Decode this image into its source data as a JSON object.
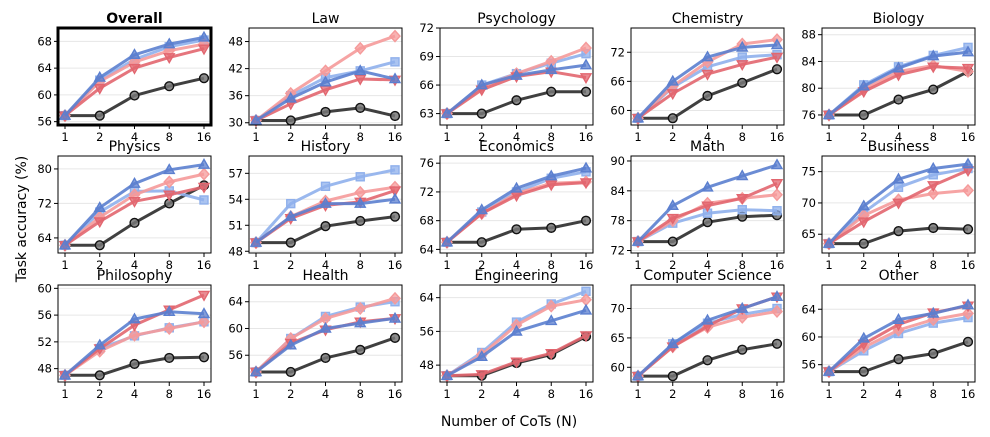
{
  "figure": {
    "ylabel": "Task accuracy (%)",
    "xlabel": "Number of CoTs (N)"
  },
  "colors": {
    "black": "#2b2b2b",
    "blue_tri": "#5b7fcf",
    "blue_sq": "#8fb0ec",
    "red_dtri": "#e2666f",
    "pink_dia": "#f59a9a",
    "grid": "#e6e6e6"
  },
  "chart_data": [
    {
      "type": "line",
      "title": "Overall",
      "bold": true,
      "highlight": true,
      "x": [
        "1",
        "2",
        "4",
        "8",
        "16"
      ],
      "ylim": [
        55.5,
        70
      ],
      "yticks": [
        56,
        60,
        64,
        68
      ],
      "series": [
        {
          "name": "black",
          "values": [
            56.9,
            56.9,
            59.9,
            61.3,
            62.5
          ]
        },
        {
          "name": "blue_tri",
          "values": [
            56.9,
            62.6,
            66.0,
            67.6,
            68.6
          ]
        },
        {
          "name": "blue_sq",
          "values": [
            56.9,
            62.2,
            65.3,
            67.2,
            68.2
          ]
        },
        {
          "name": "pink_dia",
          "values": [
            56.9,
            62.0,
            64.9,
            66.6,
            67.6
          ]
        },
        {
          "name": "red_dtri",
          "values": [
            56.9,
            61.0,
            64.0,
            65.6,
            66.9
          ]
        }
      ]
    },
    {
      "type": "line",
      "title": "Law",
      "x": [
        "1",
        "2",
        "4",
        "8",
        "16"
      ],
      "ylim": [
        29.5,
        51
      ],
      "yticks": [
        30,
        36,
        42,
        48
      ],
      "series": [
        {
          "name": "black",
          "values": [
            30.5,
            30.5,
            32.4,
            33.3,
            31.5
          ]
        },
        {
          "name": "blue_tri",
          "values": [
            30.5,
            35.4,
            39.0,
            41.5,
            39.7
          ]
        },
        {
          "name": "blue_sq",
          "values": [
            30.5,
            36.0,
            40.0,
            41.5,
            43.5
          ]
        },
        {
          "name": "pink_dia",
          "values": [
            30.5,
            36.5,
            41.5,
            46.5,
            49.2
          ]
        },
        {
          "name": "red_dtri",
          "values": [
            30.5,
            34.2,
            37.3,
            39.7,
            39.5
          ]
        }
      ]
    },
    {
      "type": "line",
      "title": "Psychology",
      "x": [
        "1",
        "2",
        "4",
        "8",
        "16"
      ],
      "ylim": [
        61.8,
        72
      ],
      "yticks": [
        63,
        66,
        69,
        72
      ],
      "series": [
        {
          "name": "black",
          "values": [
            63.0,
            63.0,
            64.4,
            65.3,
            65.3
          ]
        },
        {
          "name": "blue_tri",
          "values": [
            63.0,
            66.0,
            67.0,
            67.6,
            68.1
          ]
        },
        {
          "name": "blue_sq",
          "values": [
            63.0,
            66.0,
            67.2,
            68.3,
            69.3
          ]
        },
        {
          "name": "pink_dia",
          "values": [
            63.0,
            65.8,
            67.2,
            68.5,
            69.9
          ]
        },
        {
          "name": "red_dtri",
          "values": [
            63.0,
            65.5,
            66.9,
            67.4,
            66.8
          ]
        }
      ]
    },
    {
      "type": "line",
      "title": "Chemistry",
      "x": [
        "1",
        "2",
        "4",
        "8",
        "16"
      ],
      "ylim": [
        57,
        77
      ],
      "yticks": [
        60,
        66,
        72
      ],
      "series": [
        {
          "name": "black",
          "values": [
            58.4,
            58.4,
            63.0,
            65.7,
            68.5
          ]
        },
        {
          "name": "blue_tri",
          "values": [
            58.4,
            66.0,
            71.0,
            73.0,
            73.5
          ]
        },
        {
          "name": "blue_sq",
          "values": [
            58.4,
            64.8,
            69.0,
            71.0,
            71.5
          ]
        },
        {
          "name": "pink_dia",
          "values": [
            58.4,
            65.0,
            70.0,
            73.7,
            74.6
          ]
        },
        {
          "name": "red_dtri",
          "values": [
            58.4,
            63.5,
            67.5,
            69.5,
            71.0
          ]
        }
      ]
    },
    {
      "type": "line",
      "title": "Biology",
      "x": [
        "1",
        "2",
        "4",
        "8",
        "16"
      ],
      "ylim": [
        74.5,
        89
      ],
      "yticks": [
        76,
        80,
        84,
        88
      ],
      "series": [
        {
          "name": "black",
          "values": [
            76.0,
            76.0,
            78.3,
            79.8,
            82.5
          ]
        },
        {
          "name": "blue_tri",
          "values": [
            76.0,
            80.3,
            83.0,
            84.8,
            85.4
          ]
        },
        {
          "name": "blue_sq",
          "values": [
            76.0,
            80.5,
            83.2,
            84.9,
            86.1
          ]
        },
        {
          "name": "pink_dia",
          "values": [
            76.0,
            79.8,
            82.5,
            83.4,
            82.5
          ]
        },
        {
          "name": "red_dtri",
          "values": [
            76.0,
            79.5,
            82.0,
            83.2,
            83.0
          ]
        }
      ]
    },
    {
      "type": "line",
      "title": "Physics",
      "x": [
        "1",
        "2",
        "4",
        "8",
        "16"
      ],
      "ylim": [
        60.5,
        83
      ],
      "yticks": [
        64,
        72,
        80
      ],
      "series": [
        {
          "name": "black",
          "values": [
            62.3,
            62.3,
            67.5,
            72.0,
            76.2
          ]
        },
        {
          "name": "blue_tri",
          "values": [
            62.3,
            71.0,
            76.6,
            79.8,
            81.0
          ]
        },
        {
          "name": "blue_sq",
          "values": [
            62.3,
            70.0,
            74.8,
            74.9,
            72.8
          ]
        },
        {
          "name": "pink_dia",
          "values": [
            62.3,
            68.8,
            74.0,
            77.0,
            78.8
          ]
        },
        {
          "name": "red_dtri",
          "values": [
            62.3,
            67.8,
            72.5,
            74.0,
            75.8
          ]
        }
      ]
    },
    {
      "type": "line",
      "title": "History",
      "x": [
        "1",
        "2",
        "4",
        "8",
        "16"
      ],
      "ylim": [
        47.8,
        59
      ],
      "yticks": [
        48,
        51,
        54,
        57
      ],
      "series": [
        {
          "name": "black",
          "values": [
            49.0,
            49.0,
            50.9,
            51.5,
            52.0
          ]
        },
        {
          "name": "blue_tri",
          "values": [
            49.0,
            52.0,
            53.5,
            53.5,
            54.0
          ]
        },
        {
          "name": "blue_sq",
          "values": [
            49.0,
            53.5,
            55.5,
            56.6,
            57.4
          ]
        },
        {
          "name": "pink_dia",
          "values": [
            49.0,
            52.0,
            53.8,
            54.8,
            55.4
          ]
        },
        {
          "name": "red_dtri",
          "values": [
            49.0,
            51.8,
            53.3,
            53.7,
            55.0
          ]
        }
      ]
    },
    {
      "type": "line",
      "title": "Economics",
      "x": [
        "1",
        "2",
        "4",
        "8",
        "16"
      ],
      "ylim": [
        63.5,
        77
      ],
      "yticks": [
        64,
        68,
        72,
        76
      ],
      "series": [
        {
          "name": "black",
          "values": [
            65.0,
            65.0,
            66.8,
            67.0,
            68.0
          ]
        },
        {
          "name": "blue_tri",
          "values": [
            65.0,
            69.5,
            72.5,
            74.2,
            75.3
          ]
        },
        {
          "name": "blue_sq",
          "values": [
            65.0,
            69.2,
            72.0,
            73.9,
            74.8
          ]
        },
        {
          "name": "pink_dia",
          "values": [
            65.0,
            69.0,
            71.8,
            73.2,
            73.4
          ]
        },
        {
          "name": "red_dtri",
          "values": [
            65.0,
            69.0,
            71.5,
            73.0,
            73.3
          ]
        }
      ]
    },
    {
      "type": "line",
      "title": "Math",
      "x": [
        "1",
        "2",
        "4",
        "8",
        "16"
      ],
      "ylim": [
        71.5,
        91
      ],
      "yticks": [
        72,
        78,
        84,
        90
      ],
      "series": [
        {
          "name": "black",
          "values": [
            73.8,
            73.8,
            77.7,
            78.8,
            79.1
          ]
        },
        {
          "name": "blue_tri",
          "values": [
            73.8,
            81.0,
            84.7,
            87.0,
            89.2
          ]
        },
        {
          "name": "blue_sq",
          "values": [
            73.8,
            77.5,
            79.5,
            80.2,
            80.0
          ]
        },
        {
          "name": "pink_dia",
          "values": [
            73.8,
            78.0,
            81.5,
            82.5,
            83.2
          ]
        },
        {
          "name": "red_dtri",
          "values": [
            73.8,
            78.5,
            81.0,
            82.5,
            85.5
          ]
        }
      ]
    },
    {
      "type": "line",
      "title": "Business",
      "x": [
        "1",
        "2",
        "4",
        "8",
        "16"
      ],
      "ylim": [
        62,
        77.5
      ],
      "yticks": [
        65,
        70,
        75
      ],
      "series": [
        {
          "name": "black",
          "values": [
            63.5,
            63.5,
            65.5,
            66.0,
            65.8
          ]
        },
        {
          "name": "blue_tri",
          "values": [
            63.5,
            69.5,
            73.8,
            75.5,
            76.2
          ]
        },
        {
          "name": "blue_sq",
          "values": [
            63.5,
            68.5,
            72.5,
            74.5,
            75.5
          ]
        },
        {
          "name": "pink_dia",
          "values": [
            63.5,
            68.0,
            70.5,
            71.5,
            72.0
          ]
        },
        {
          "name": "red_dtri",
          "values": [
            63.5,
            67.0,
            70.0,
            72.8,
            75.2
          ]
        }
      ]
    },
    {
      "type": "line",
      "title": "Philosophy",
      "x": [
        "1",
        "2",
        "4",
        "8",
        "16"
      ],
      "ylim": [
        46,
        60.5
      ],
      "yticks": [
        48,
        52,
        56,
        60
      ],
      "series": [
        {
          "name": "black",
          "values": [
            47.0,
            47.0,
            48.7,
            49.6,
            49.7
          ]
        },
        {
          "name": "blue_tri",
          "values": [
            47.0,
            51.5,
            55.4,
            56.5,
            56.2
          ]
        },
        {
          "name": "blue_sq",
          "values": [
            47.0,
            51.0,
            52.9,
            54.1,
            55.0
          ]
        },
        {
          "name": "pink_dia",
          "values": [
            47.0,
            50.6,
            53.0,
            54.0,
            55.0
          ]
        },
        {
          "name": "red_dtri",
          "values": [
            47.0,
            51.0,
            54.5,
            56.8,
            59.0
          ]
        }
      ]
    },
    {
      "type": "line",
      "title": "Health",
      "x": [
        "1",
        "2",
        "4",
        "8",
        "16"
      ],
      "ylim": [
        52,
        66.5
      ],
      "yticks": [
        56,
        60,
        64
      ],
      "series": [
        {
          "name": "black",
          "values": [
            53.5,
            53.5,
            55.6,
            56.8,
            58.6
          ]
        },
        {
          "name": "blue_tri",
          "values": [
            53.5,
            57.5,
            60.0,
            60.8,
            61.5
          ]
        },
        {
          "name": "blue_sq",
          "values": [
            53.5,
            58.5,
            61.8,
            63.2,
            64.0
          ]
        },
        {
          "name": "pink_dia",
          "values": [
            53.5,
            58.5,
            61.5,
            63.0,
            64.5
          ]
        },
        {
          "name": "red_dtri",
          "values": [
            53.5,
            57.8,
            59.8,
            61.0,
            61.5
          ]
        }
      ]
    },
    {
      "type": "line",
      "title": "Engineering",
      "x": [
        "1",
        "2",
        "4",
        "8",
        "16"
      ],
      "ylim": [
        44,
        67
      ],
      "yticks": [
        48,
        56,
        64
      ],
      "series": [
        {
          "name": "black",
          "values": [
            45.5,
            45.5,
            48.5,
            50.5,
            54.8
          ]
        },
        {
          "name": "blue_tri",
          "values": [
            45.5,
            50.0,
            56.0,
            58.5,
            61.0
          ]
        },
        {
          "name": "blue_sq",
          "values": [
            45.5,
            51.0,
            58.2,
            62.5,
            65.5
          ]
        },
        {
          "name": "pink_dia",
          "values": [
            45.5,
            50.5,
            57.5,
            62.0,
            63.5
          ]
        },
        {
          "name": "red_dtri",
          "values": [
            45.5,
            45.8,
            48.8,
            50.8,
            55.0
          ]
        }
      ]
    },
    {
      "type": "line",
      "title": "Computer Science",
      "x": [
        "1",
        "2",
        "4",
        "8",
        "16"
      ],
      "ylim": [
        57.5,
        74
      ],
      "yticks": [
        60,
        65,
        70
      ],
      "series": [
        {
          "name": "black",
          "values": [
            58.5,
            58.5,
            61.2,
            63.0,
            64.0
          ]
        },
        {
          "name": "blue_tri",
          "values": [
            58.5,
            64.0,
            68.0,
            70.0,
            72.0
          ]
        },
        {
          "name": "blue_sq",
          "values": [
            58.5,
            64.0,
            67.5,
            69.0,
            70.0
          ]
        },
        {
          "name": "pink_dia",
          "values": [
            58.5,
            63.5,
            66.8,
            68.5,
            69.5
          ]
        },
        {
          "name": "red_dtri",
          "values": [
            58.5,
            63.5,
            67.0,
            70.0,
            72.0
          ]
        }
      ]
    },
    {
      "type": "line",
      "title": "Other",
      "x": [
        "1",
        "2",
        "4",
        "8",
        "16"
      ],
      "ylim": [
        53.5,
        67.5
      ],
      "yticks": [
        56,
        60,
        64
      ],
      "series": [
        {
          "name": "black",
          "values": [
            55.0,
            55.0,
            56.8,
            57.6,
            59.3
          ]
        },
        {
          "name": "blue_tri",
          "values": [
            55.0,
            59.8,
            62.5,
            63.4,
            64.6
          ]
        },
        {
          "name": "blue_sq",
          "values": [
            55.0,
            58.0,
            60.5,
            62.0,
            62.8
          ]
        },
        {
          "name": "pink_dia",
          "values": [
            55.0,
            58.5,
            61.0,
            62.5,
            63.4
          ]
        },
        {
          "name": "red_dtri",
          "values": [
            55.0,
            59.0,
            61.8,
            63.5,
            64.5
          ]
        }
      ]
    }
  ]
}
